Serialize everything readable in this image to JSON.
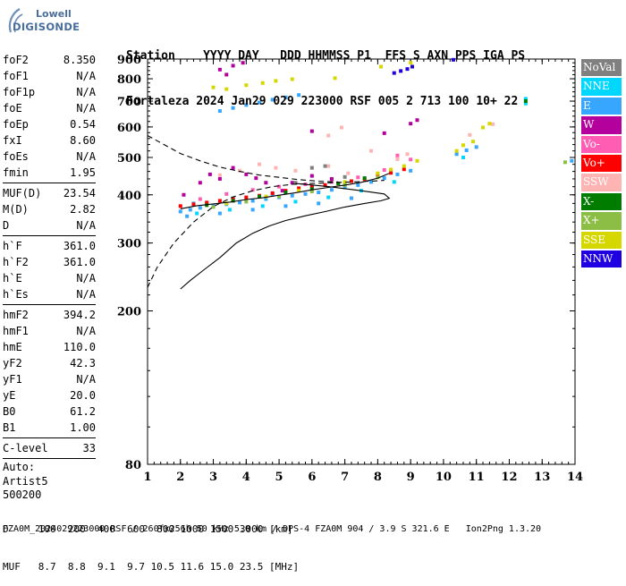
{
  "logo": {
    "brand_top": "Lowell",
    "brand_bottom": "DIGISONDE"
  },
  "header": {
    "line1": "Station    YYYY DAY   DDD HHMMSS P1  FFS S AXN PPS IGA PS",
    "line2": "Fortaleza 2024 Jan29 029 223000 RSF 005 2 713 100 10+ 22"
  },
  "params": {
    "group1": [
      {
        "label": "foF2",
        "value": "8.350"
      },
      {
        "label": "foF1",
        "value": "N/A"
      },
      {
        "label": "foF1p",
        "value": "N/A"
      },
      {
        "label": "foE",
        "value": "N/A"
      },
      {
        "label": "foEp",
        "value": "0.54"
      },
      {
        "label": "fxI",
        "value": "8.60"
      },
      {
        "label": "foEs",
        "value": "N/A"
      },
      {
        "label": "fmin",
        "value": "1.95"
      }
    ],
    "group2": [
      {
        "label": "MUF(D)",
        "value": "23.54"
      },
      {
        "label": "M(D)",
        "value": "2.82"
      },
      {
        "label": "D",
        "value": "N/A"
      }
    ],
    "group3": [
      {
        "label": "h`F",
        "value": "361.0"
      },
      {
        "label": "h`F2",
        "value": "361.0"
      },
      {
        "label": "h`E",
        "value": "N/A"
      },
      {
        "label": "h`Es",
        "value": "N/A"
      }
    ],
    "group4": [
      {
        "label": "hmF2",
        "value": "394.2"
      },
      {
        "label": "hmF1",
        "value": "N/A"
      },
      {
        "label": "hmE",
        "value": "110.0"
      },
      {
        "label": "yF2",
        "value": "42.3"
      },
      {
        "label": "yF1",
        "value": "N/A"
      },
      {
        "label": "yE",
        "value": "20.0"
      },
      {
        "label": "B0",
        "value": "61.2"
      },
      {
        "label": "B1",
        "value": "1.00"
      }
    ],
    "group5": [
      {
        "label": "C-level",
        "value": "33"
      }
    ],
    "auto_lines": [
      "Auto:",
      "Artist5",
      "500200"
    ]
  },
  "legend": [
    {
      "label": "NoVal",
      "color": "#808080"
    },
    {
      "label": "NNE",
      "color": "#00d7ff"
    },
    {
      "label": "E",
      "color": "#36a6ff"
    },
    {
      "label": "W",
      "color": "#b4009c"
    },
    {
      "label": "Vo-",
      "color": "#ff5cb4"
    },
    {
      "label": "Vo+",
      "color": "#ff0000"
    },
    {
      "label": "SSW",
      "color": "#ffb4b4"
    },
    {
      "label": "X-",
      "color": "#007d00"
    },
    {
      "label": "X+",
      "color": "#8cbe46"
    },
    {
      "label": "SSE",
      "color": "#d7d700"
    },
    {
      "label": "NNW",
      "color": "#1e00e1"
    }
  ],
  "footer": {
    "line1": "D     100  200  400  600  800 1000 1500 3000 [km]",
    "line2": "MUF   8.7  8.8  9.1  9.7 10.5 11.6 15.0 23.5 [MHz]",
    "file": "FZA0M_2024029223000.RSF / 260fx256h 50 kHz 5.0 km / DPS-4 FZA0M 904 / 3.9 S 321.6 E   Ion2Png 1.3.20"
  },
  "chart_data": {
    "type": "scatter",
    "xlim": [
      1,
      14
    ],
    "ylim": [
      80,
      900
    ],
    "y_scale": "log",
    "xticks": [
      1,
      2,
      3,
      4,
      5,
      6,
      7,
      8,
      9,
      10,
      11,
      12,
      13,
      14
    ],
    "yticks": [
      80,
      200,
      300,
      400,
      500,
      600,
      700,
      800,
      900
    ],
    "grid": false,
    "legend_position": "right",
    "series": [
      {
        "color": "#36a6ff",
        "points": [
          [
            2.0,
            362
          ],
          [
            2.3,
            366
          ],
          [
            2.6,
            370
          ],
          [
            3.0,
            374
          ],
          [
            3.4,
            378
          ],
          [
            3.8,
            382
          ],
          [
            4.2,
            386
          ],
          [
            4.6,
            390
          ],
          [
            5.0,
            394
          ],
          [
            5.4,
            398
          ],
          [
            5.8,
            402
          ],
          [
            6.2,
            406
          ],
          [
            6.6,
            412
          ],
          [
            7.0,
            418
          ],
          [
            7.4,
            424
          ],
          [
            7.8,
            432
          ],
          [
            8.2,
            442
          ],
          [
            8.6,
            452
          ],
          [
            9.0,
            462
          ],
          [
            2.2,
            352
          ],
          [
            3.2,
            358
          ],
          [
            4.2,
            366
          ],
          [
            5.2,
            374
          ],
          [
            6.2,
            380
          ],
          [
            7.2,
            392
          ],
          [
            3.2,
            660
          ],
          [
            3.6,
            672
          ],
          [
            4.0,
            684
          ],
          [
            4.4,
            694
          ],
          [
            4.8,
            706
          ],
          [
            5.2,
            716
          ],
          [
            5.6,
            726
          ],
          [
            10.4,
            510
          ],
          [
            10.7,
            522
          ],
          [
            11.0,
            532
          ],
          [
            2.4,
            380
          ],
          [
            3.6,
            392
          ],
          [
            4.8,
            402
          ],
          [
            6.0,
            414
          ],
          [
            13.9,
            490
          ]
        ]
      },
      {
        "color": "#00d7ff",
        "points": [
          [
            2.5,
            358
          ],
          [
            3.5,
            366
          ],
          [
            4.5,
            374
          ],
          [
            5.5,
            384
          ],
          [
            6.5,
            394
          ],
          [
            7.5,
            410
          ],
          [
            8.5,
            432
          ],
          [
            12.5,
            710
          ],
          [
            12.5,
            690
          ],
          [
            10.6,
            500
          ]
        ]
      },
      {
        "color": "#ff0000",
        "points": [
          [
            2.0,
            374
          ],
          [
            2.4,
            378
          ],
          [
            2.8,
            382
          ],
          [
            3.2,
            386
          ],
          [
            3.6,
            390
          ],
          [
            4.0,
            394
          ],
          [
            4.4,
            398
          ],
          [
            4.8,
            404
          ],
          [
            5.2,
            410
          ],
          [
            5.6,
            416
          ],
          [
            6.0,
            420
          ],
          [
            6.4,
            424
          ],
          [
            6.8,
            428
          ],
          [
            7.2,
            434
          ],
          [
            7.6,
            440
          ],
          [
            8.0,
            448
          ],
          [
            8.4,
            456
          ],
          [
            8.8,
            466
          ]
        ]
      },
      {
        "color": "#ff5cb4",
        "points": [
          [
            2.6,
            390
          ],
          [
            3.4,
            402
          ],
          [
            4.2,
            412
          ],
          [
            5.0,
            420
          ],
          [
            5.8,
            426
          ],
          [
            6.6,
            432
          ],
          [
            7.4,
            444
          ],
          [
            8.2,
            464
          ],
          [
            9.0,
            494
          ],
          [
            8.6,
            506
          ]
        ]
      },
      {
        "color": "#b4009c",
        "points": [
          [
            2.6,
            430
          ],
          [
            2.9,
            452
          ],
          [
            3.2,
            440
          ],
          [
            3.6,
            470
          ],
          [
            4.0,
            452
          ],
          [
            4.3,
            442
          ],
          [
            4.6,
            430
          ],
          [
            5.1,
            410
          ],
          [
            5.4,
            430
          ],
          [
            6.0,
            448
          ],
          [
            6.6,
            440
          ],
          [
            3.2,
            845
          ],
          [
            3.6,
            865
          ],
          [
            3.9,
            880
          ],
          [
            3.4,
            820
          ],
          [
            6.0,
            585
          ],
          [
            8.2,
            578
          ],
          [
            9.0,
            612
          ],
          [
            9.2,
            625
          ],
          [
            2.1,
            400
          ]
        ]
      },
      {
        "color": "#ffb4b4",
        "points": [
          [
            3.2,
            450
          ],
          [
            3.8,
            462
          ],
          [
            4.4,
            480
          ],
          [
            4.9,
            470
          ],
          [
            5.5,
            462
          ],
          [
            6.0,
            470
          ],
          [
            6.5,
            475
          ],
          [
            7.1,
            455
          ],
          [
            8.6,
            495
          ],
          [
            8.9,
            510
          ],
          [
            6.5,
            570
          ],
          [
            6.9,
            598
          ],
          [
            10.8,
            572
          ],
          [
            11.5,
            610
          ],
          [
            7.8,
            520
          ]
        ]
      },
      {
        "color": "#d7d700",
        "points": [
          [
            3.0,
            760
          ],
          [
            3.4,
            752
          ],
          [
            4.0,
            770
          ],
          [
            4.5,
            780
          ],
          [
            4.9,
            790
          ],
          [
            5.4,
            798
          ],
          [
            6.7,
            803
          ],
          [
            8.1,
            860
          ],
          [
            9.0,
            880
          ],
          [
            8.0,
            455
          ],
          [
            8.4,
            465
          ],
          [
            8.8,
            475
          ],
          [
            9.2,
            490
          ],
          [
            10.4,
            520
          ],
          [
            10.6,
            538
          ],
          [
            10.9,
            550
          ],
          [
            11.2,
            598
          ],
          [
            11.4,
            612
          ],
          [
            3.4,
            380
          ],
          [
            4.6,
            396
          ],
          [
            5.6,
            410
          ],
          [
            7.0,
            432
          ]
        ]
      },
      {
        "color": "#007d00",
        "points": [
          [
            2.8,
            376
          ],
          [
            3.6,
            386
          ],
          [
            4.4,
            396
          ],
          [
            5.2,
            406
          ],
          [
            6.0,
            414
          ],
          [
            6.8,
            428
          ],
          [
            7.6,
            442
          ],
          [
            12.5,
            700
          ]
        ]
      },
      {
        "color": "#8cbe46",
        "points": [
          [
            3.0,
            372
          ],
          [
            4.0,
            384
          ],
          [
            5.0,
            396
          ],
          [
            6.0,
            408
          ],
          [
            7.0,
            424
          ],
          [
            8.0,
            444
          ],
          [
            13.7,
            486
          ]
        ]
      },
      {
        "color": "#1e00e1",
        "points": [
          [
            8.5,
            828
          ],
          [
            8.7,
            838
          ],
          [
            8.9,
            848
          ],
          [
            9.05,
            860
          ],
          [
            10.3,
            896
          ]
        ]
      },
      {
        "color": "#808080",
        "points": [
          [
            6.0,
            470
          ],
          [
            6.4,
            475
          ],
          [
            7.0,
            445
          ],
          [
            5.5,
            430
          ]
        ]
      }
    ],
    "lines": [
      {
        "style": "solid",
        "points": [
          [
            2.0,
            228
          ],
          [
            2.3,
            240
          ],
          [
            2.7,
            255
          ],
          [
            3.2,
            275
          ],
          [
            3.7,
            300
          ],
          [
            4.2,
            318
          ],
          [
            4.7,
            332
          ],
          [
            5.2,
            343
          ],
          [
            5.8,
            353
          ],
          [
            6.4,
            362
          ],
          [
            7.0,
            372
          ],
          [
            7.6,
            380
          ],
          [
            8.1,
            386
          ],
          [
            8.35,
            392
          ],
          [
            8.2,
            402
          ],
          [
            7.5,
            410
          ],
          [
            6.5,
            420
          ],
          [
            5.5,
            428
          ]
        ]
      },
      {
        "style": "dashed",
        "points": [
          [
            1.0,
            230
          ],
          [
            1.3,
            260
          ],
          [
            1.8,
            300
          ],
          [
            2.4,
            340
          ],
          [
            3.0,
            373
          ],
          [
            3.6,
            395
          ],
          [
            4.2,
            410
          ],
          [
            4.8,
            420
          ],
          [
            5.4,
            426
          ],
          [
            6.0,
            428
          ],
          [
            6.6,
            430
          ],
          [
            7.2,
            432
          ],
          [
            7.8,
            434
          ],
          [
            8.2,
            436
          ]
        ]
      },
      {
        "style": "dashed",
        "points": [
          [
            1.0,
            570
          ],
          [
            1.5,
            540
          ],
          [
            2.0,
            512
          ],
          [
            2.6,
            490
          ],
          [
            3.2,
            472
          ],
          [
            3.8,
            460
          ],
          [
            4.4,
            450
          ],
          [
            5.0,
            444
          ],
          [
            5.6,
            438
          ],
          [
            6.2,
            434
          ],
          [
            6.8,
            432
          ]
        ]
      },
      {
        "style": "solid",
        "points": [
          [
            2.0,
            368
          ],
          [
            2.5,
            375
          ],
          [
            3.0,
            379
          ],
          [
            3.5,
            383
          ],
          [
            4.0,
            389
          ],
          [
            4.5,
            393
          ],
          [
            5.0,
            399
          ],
          [
            5.5,
            405
          ],
          [
            6.0,
            412
          ],
          [
            6.5,
            418
          ],
          [
            7.0,
            424
          ],
          [
            7.5,
            431
          ],
          [
            8.0,
            442
          ],
          [
            8.35,
            455
          ]
        ]
      }
    ]
  }
}
